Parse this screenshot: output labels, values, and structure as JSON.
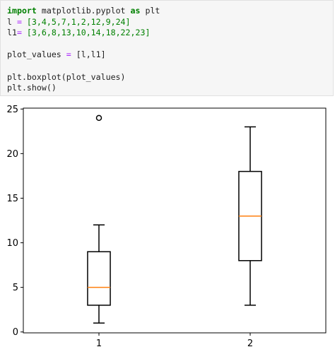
{
  "code_cell": {
    "line1": {
      "kw_import": "import",
      "module": " matplotlib.pyplot ",
      "kw_as": "as",
      "alias": " plt"
    },
    "line2": {
      "name": "l ",
      "eq": "=",
      "value": " [3,4,5,7,1,2,12,9,24]"
    },
    "line3": {
      "name": "l1",
      "eq": "=",
      "value": " [3,6,8,13,10,14,18,22,23]"
    },
    "line5": {
      "name": "plot_values ",
      "eq": "=",
      "value": " [l,l1]"
    },
    "line7": {
      "text": "plt.boxplot(plot_values)"
    },
    "line8": {
      "text": "plt.show()"
    }
  },
  "chart_data": {
    "type": "boxplot",
    "categories": [
      "1",
      "2"
    ],
    "series": [
      {
        "category": "1",
        "values": [
          3,
          4,
          5,
          7,
          1,
          2,
          12,
          9,
          24
        ],
        "whisker_low": 1,
        "q1": 3,
        "median": 5,
        "q3": 9,
        "whisker_high": 12,
        "outliers": [
          24
        ]
      },
      {
        "category": "2",
        "values": [
          3,
          6,
          8,
          13,
          10,
          14,
          18,
          22,
          23
        ],
        "whisker_low": 3,
        "q1": 8,
        "median": 13,
        "q3": 18,
        "whisker_high": 23,
        "outliers": []
      }
    ],
    "yticks": [
      0,
      5,
      10,
      15,
      20,
      25
    ],
    "ylim": [
      -0.1,
      25.1
    ],
    "xlim": [
      0.5,
      2.5
    ],
    "grid": false,
    "colors": {
      "box": "#000000",
      "median": "#ff7f0e",
      "outlier": "#000000"
    }
  }
}
